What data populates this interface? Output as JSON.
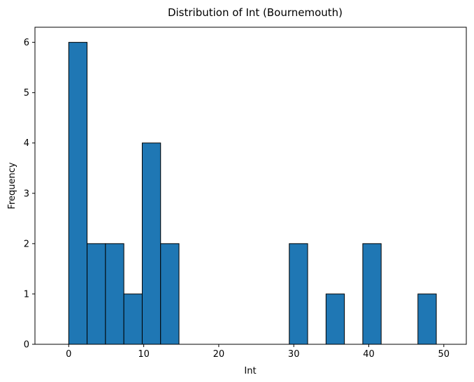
{
  "chart_data": {
    "type": "bar",
    "title": "Distribution of Int (Bournemouth)",
    "xlabel": "Int",
    "ylabel": "Frequency",
    "xlim": [
      -4.5,
      53
    ],
    "ylim": [
      0,
      6.3
    ],
    "xticks": [
      0,
      10,
      20,
      30,
      40,
      50
    ],
    "yticks": [
      0,
      1,
      2,
      3,
      4,
      5,
      6
    ],
    "bin_edges": [
      0,
      2.45,
      4.9,
      7.35,
      9.8,
      12.25,
      14.7,
      17.15,
      19.6,
      22.05,
      24.5,
      26.95,
      29.4,
      31.85,
      34.3,
      36.75,
      39.2,
      41.65,
      44.1,
      46.55,
      49
    ],
    "values": [
      6,
      2,
      2,
      1,
      4,
      2,
      0,
      0,
      0,
      0,
      0,
      0,
      2,
      0,
      1,
      0,
      2,
      0,
      0,
      1
    ],
    "bar_color": "#1f77b4",
    "edge_color": "#000000",
    "grid": false
  }
}
